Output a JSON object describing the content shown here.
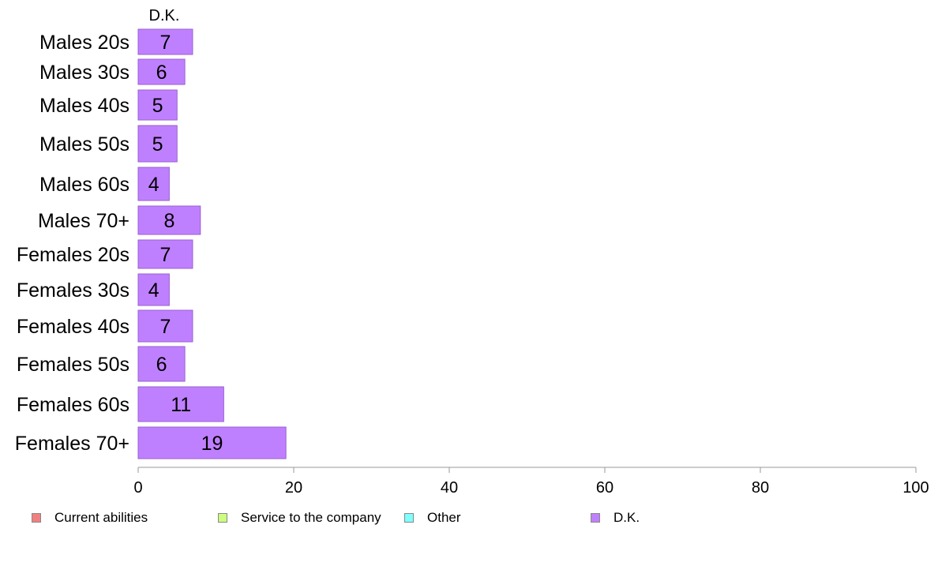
{
  "chart_data": {
    "type": "bar",
    "orientation": "horizontal",
    "stacked": true,
    "series_header": "D.K.",
    "categories": [
      "Males 20s",
      "Males 30s",
      "Males 40s",
      "Males 50s",
      "Males 60s",
      "Males 70+",
      "Females 20s",
      "Females 30s",
      "Females 40s",
      "Females 50s",
      "Females 60s",
      "Females 70+"
    ],
    "series": [
      {
        "name": "Current abilities",
        "color": "#f08080",
        "values": [
          0,
          0,
          0,
          0,
          0,
          0,
          0,
          0,
          0,
          0,
          0,
          0
        ]
      },
      {
        "name": "Service to the company",
        "color": "#ccff80",
        "values": [
          0,
          0,
          0,
          0,
          0,
          0,
          0,
          0,
          0,
          0,
          0,
          0
        ]
      },
      {
        "name": "Other",
        "color": "#80ffff",
        "values": [
          0,
          0,
          0,
          0,
          0,
          0,
          0,
          0,
          0,
          0,
          0,
          0
        ]
      },
      {
        "name": "D.K.",
        "color": "#bf80ff",
        "values": [
          7,
          6,
          5,
          5,
          4,
          8,
          7,
          4,
          7,
          6,
          11,
          19
        ]
      }
    ],
    "data_labels": [
      "7",
      "6",
      "5",
      "5",
      "4",
      "8",
      "7",
      "4",
      "7",
      "6",
      "11",
      "19"
    ],
    "xlim": [
      0,
      100
    ],
    "xticks": [
      "0",
      "20",
      "40",
      "60",
      "80",
      "100"
    ],
    "xlabel": "",
    "ylabel": "",
    "grid": false,
    "legend_position": "bottom"
  }
}
